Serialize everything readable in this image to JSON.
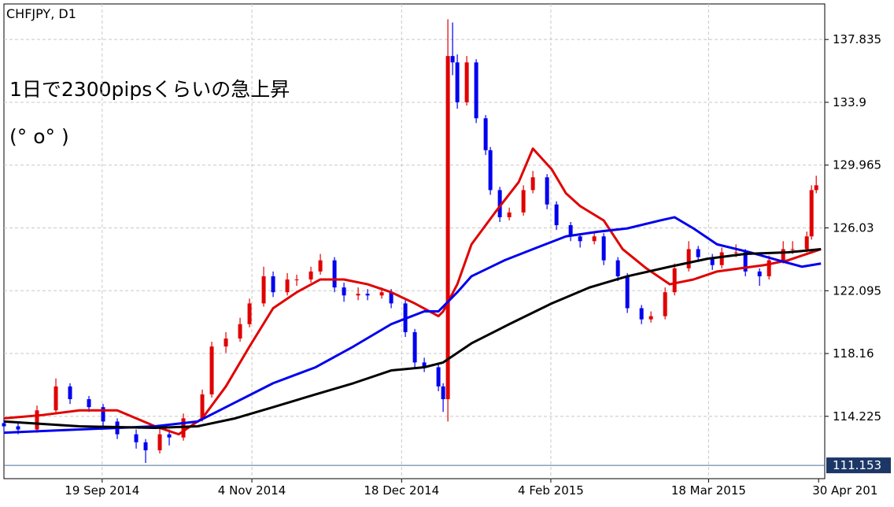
{
  "chart_data": {
    "type": "candlestick",
    "title": "CHFJPY, D1",
    "annotations": [
      "1日で2300pipsくらいの急上昇",
      "(° o° )"
    ],
    "up_color": "#e00000",
    "down_color": "#0000ee",
    "grid": true,
    "ylim": [
      110.32,
      140.31
    ],
    "yticks": [
      137.835,
      133.9,
      129.965,
      126.03,
      122.095,
      118.16,
      114.225
    ],
    "xlim": [
      0,
      173.8
    ],
    "xticks": [
      {
        "value": 20.8,
        "label": "19 Sep 2014"
      },
      {
        "value": 52.5,
        "label": "4 Nov 2014"
      },
      {
        "value": 84.2,
        "label": "18 Dec 2014"
      },
      {
        "value": 115.8,
        "label": "4 Feb 2015"
      },
      {
        "value": 149.2,
        "label": "18 Mar 2015"
      },
      {
        "value": 172.5,
        "label": "30 Apr 201"
      }
    ],
    "last_price": 111.153,
    "x": [
      0,
      3,
      7,
      11,
      14,
      18,
      21,
      24,
      28,
      30,
      33,
      35,
      38,
      42,
      44,
      47,
      50,
      52,
      55,
      57,
      60,
      62,
      65,
      67,
      70,
      72,
      75,
      77,
      80,
      82,
      85,
      87,
      89,
      92,
      93,
      94,
      95,
      96,
      98,
      100,
      102,
      103,
      105,
      107,
      110,
      112,
      115,
      117,
      120,
      122,
      125,
      127,
      130,
      132,
      135,
      137,
      140,
      142,
      145,
      147,
      150,
      152,
      155,
      157,
      160,
      162,
      165,
      167,
      170,
      171,
      172
    ],
    "open": [
      113.8,
      113.6,
      113.4,
      114.6,
      116.1,
      115.3,
      114.8,
      113.9,
      113.1,
      112.6,
      112.1,
      113.1,
      112.9,
      114.1,
      115.6,
      118.6,
      119.1,
      120.0,
      121.3,
      123.0,
      122.0,
      122.8,
      122.8,
      123.3,
      124.0,
      122.3,
      121.8,
      121.9,
      121.8,
      122.0,
      121.3,
      119.5,
      117.6,
      117.3,
      116.1,
      115.3,
      136.8,
      136.4,
      133.9,
      136.4,
      132.9,
      130.9,
      128.4,
      126.7,
      127.0,
      128.4,
      129.2,
      127.5,
      126.2,
      125.5,
      125.2,
      125.5,
      124.0,
      123.0,
      121.0,
      120.3,
      120.5,
      122.0,
      123.5,
      124.7,
      124.2,
      123.7,
      124.5,
      124.5,
      123.3,
      123.0,
      124.0,
      124.7,
      124.7,
      125.5,
      128.4
    ],
    "high": [
      114.1,
      113.8,
      114.9,
      116.6,
      116.3,
      115.5,
      115.0,
      114.1,
      113.4,
      112.8,
      113.5,
      113.4,
      114.4,
      115.9,
      118.9,
      119.5,
      120.4,
      121.6,
      123.6,
      123.3,
      123.2,
      123.1,
      123.6,
      124.4,
      124.2,
      122.6,
      122.3,
      122.2,
      122.3,
      122.2,
      121.5,
      119.7,
      117.9,
      117.5,
      116.3,
      139.1,
      138.9,
      136.9,
      136.8,
      136.6,
      133.1,
      131.1,
      128.6,
      127.3,
      128.7,
      129.6,
      129.4,
      127.7,
      126.4,
      125.7,
      125.8,
      125.7,
      124.2,
      123.2,
      121.2,
      120.8,
      122.3,
      123.8,
      125.2,
      124.9,
      124.4,
      124.8,
      125.0,
      124.7,
      123.5,
      124.3,
      125.2,
      125.2,
      125.8,
      128.7,
      129.3
    ],
    "low": [
      113.3,
      113.1,
      113.2,
      114.4,
      115.0,
      114.5,
      113.6,
      112.8,
      112.2,
      111.3,
      111.9,
      112.4,
      112.7,
      113.9,
      115.4,
      118.2,
      118.9,
      119.8,
      121.1,
      121.7,
      121.8,
      122.4,
      122.6,
      123.1,
      122.0,
      121.4,
      121.5,
      121.5,
      121.6,
      121.0,
      119.2,
      117.3,
      117.0,
      115.8,
      114.5,
      113.9,
      135.6,
      133.5,
      133.7,
      132.6,
      130.6,
      128.1,
      126.4,
      126.5,
      126.8,
      128.2,
      127.2,
      125.9,
      125.2,
      124.8,
      125.0,
      123.7,
      122.7,
      120.7,
      120.0,
      120.1,
      120.3,
      121.8,
      123.3,
      123.9,
      123.4,
      123.5,
      124.2,
      123.0,
      122.4,
      122.8,
      123.8,
      124.4,
      124.5,
      125.3,
      128.2
    ],
    "close": [
      113.6,
      113.4,
      114.6,
      116.1,
      115.3,
      114.8,
      113.9,
      113.1,
      112.6,
      112.1,
      113.1,
      112.9,
      114.1,
      115.6,
      118.6,
      119.1,
      120.0,
      121.3,
      123.0,
      122.0,
      122.8,
      122.8,
      123.3,
      124.0,
      122.3,
      121.8,
      121.9,
      121.8,
      122.0,
      121.3,
      119.5,
      117.6,
      117.3,
      116.1,
      115.3,
      136.8,
      136.4,
      133.9,
      136.4,
      132.9,
      130.9,
      128.4,
      126.7,
      127.0,
      128.4,
      129.2,
      127.5,
      126.2,
      125.5,
      125.2,
      125.5,
      124.0,
      123.0,
      121.0,
      120.3,
      120.5,
      122.0,
      123.5,
      124.7,
      124.2,
      123.7,
      124.5,
      124.5,
      123.3,
      123.0,
      124.0,
      124.7,
      124.7,
      125.5,
      128.4,
      128.7
    ],
    "lines": [
      {
        "color": "#e00000",
        "x": [
          0,
          8,
          16,
          24,
          32,
          37,
          42,
          47,
          52,
          57,
          62,
          67,
          72,
          77,
          82,
          87,
          92,
          93,
          96,
          99,
          104,
          109,
          112,
          116,
          119,
          122,
          127,
          131,
          136,
          141,
          146,
          151,
          156,
          161,
          166,
          171,
          173
        ],
        "values": [
          114.1,
          114.3,
          114.6,
          114.6,
          113.6,
          113.1,
          114.1,
          116.1,
          118.6,
          121.0,
          122.0,
          122.8,
          122.8,
          122.5,
          122.0,
          121.3,
          120.5,
          120.8,
          122.5,
          125.0,
          127.0,
          128.9,
          131.0,
          129.7,
          128.2,
          127.4,
          126.5,
          124.7,
          123.5,
          122.5,
          122.8,
          123.3,
          123.5,
          123.7,
          124.0,
          124.5,
          124.7
        ]
      },
      {
        "color": "#0000ee",
        "x": [
          0,
          16,
          32,
          41,
          49,
          57,
          66,
          74,
          82,
          89,
          92,
          96,
          99,
          106,
          112,
          119,
          126,
          132,
          139,
          142,
          146,
          151,
          158,
          164,
          169,
          173
        ],
        "values": [
          113.2,
          113.4,
          113.6,
          113.9,
          115.1,
          116.3,
          117.3,
          118.6,
          120.0,
          120.8,
          120.8,
          122.0,
          123.0,
          124.0,
          124.7,
          125.5,
          125.8,
          126.0,
          126.5,
          126.7,
          126.0,
          125.0,
          124.5,
          124.0,
          123.6,
          123.8
        ]
      },
      {
        "color": "#000000",
        "x": [
          0,
          16,
          32,
          41,
          49,
          57,
          66,
          74,
          82,
          89,
          93,
          99,
          107,
          116,
          124,
          132,
          141,
          149,
          157,
          166,
          173
        ],
        "values": [
          113.9,
          113.6,
          113.5,
          113.6,
          114.1,
          114.8,
          115.6,
          116.3,
          117.1,
          117.3,
          117.6,
          118.8,
          120.0,
          121.3,
          122.3,
          123.0,
          123.6,
          124.1,
          124.4,
          124.5,
          124.7
        ]
      }
    ]
  }
}
